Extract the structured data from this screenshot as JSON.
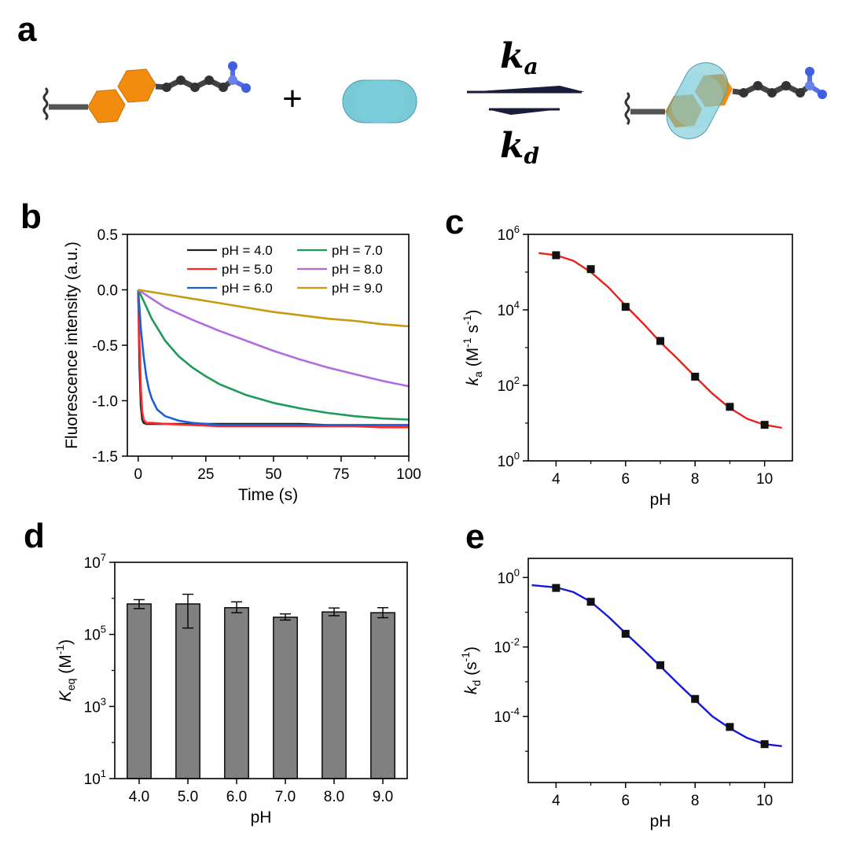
{
  "panels": {
    "a": {
      "label": "a",
      "plus": "+",
      "rate_forward": {
        "symbol": "k",
        "sub": "a"
      },
      "rate_backward": {
        "symbol": "k",
        "sub": "d"
      },
      "colors": {
        "hexagon": "#F28C0F",
        "chain": "#3a3a3a",
        "amine": "#5570e6",
        "capsule": "#63bfcf",
        "arrow": "#1b1b3a"
      }
    },
    "b": {
      "label": "b"
    },
    "c": {
      "label": "c"
    },
    "d": {
      "label": "d"
    },
    "e": {
      "label": "e"
    }
  },
  "chart_data": [
    {
      "panel": "b",
      "type": "line",
      "xlabel": "Time (s)",
      "ylabel": "Fluorescence intensity (a.u.)",
      "xlim": [
        -4,
        100
      ],
      "ylim": [
        -1.5,
        0.5
      ],
      "xticks": [
        0,
        25,
        50,
        75,
        100
      ],
      "xtick_labels": [
        "0",
        "25",
        "50",
        "75",
        "100"
      ],
      "yticks": [
        0.5,
        0.0,
        -0.5,
        -1.0,
        -1.5
      ],
      "ytick_labels": [
        "0.5",
        "0.0",
        "-0.5",
        "-1.0",
        "-1.5"
      ],
      "legend_position": "top-right",
      "series": [
        {
          "name": "pH = 4.0",
          "color": "#222222",
          "x": [
            0,
            0.5,
            1,
            1.5,
            2,
            3,
            5,
            10,
            20,
            30,
            40,
            50,
            60,
            70,
            80,
            90,
            100
          ],
          "y": [
            0.0,
            -0.7,
            -1.05,
            -1.17,
            -1.2,
            -1.21,
            -1.21,
            -1.21,
            -1.21,
            -1.21,
            -1.21,
            -1.21,
            -1.21,
            -1.22,
            -1.22,
            -1.22,
            -1.22
          ]
        },
        {
          "name": "pH = 5.0",
          "color": "#ff2a2a",
          "x": [
            0,
            0.5,
            1,
            1.5,
            2,
            3,
            5,
            10,
            20,
            30,
            40,
            50,
            60,
            70,
            80,
            90,
            100
          ],
          "y": [
            0.0,
            -0.5,
            -0.9,
            -1.1,
            -1.17,
            -1.2,
            -1.2,
            -1.21,
            -1.22,
            -1.23,
            -1.23,
            -1.23,
            -1.23,
            -1.23,
            -1.23,
            -1.24,
            -1.24
          ]
        },
        {
          "name": "pH = 6.0",
          "color": "#1f5fd6",
          "x": [
            0,
            1,
            2,
            3,
            4,
            5,
            7,
            10,
            15,
            20,
            25,
            30,
            40,
            50,
            60,
            70,
            80,
            90,
            100
          ],
          "y": [
            0.0,
            -0.35,
            -0.6,
            -0.78,
            -0.9,
            -0.98,
            -1.08,
            -1.14,
            -1.18,
            -1.2,
            -1.21,
            -1.22,
            -1.22,
            -1.22,
            -1.22,
            -1.22,
            -1.22,
            -1.22,
            -1.22
          ]
        },
        {
          "name": "pH = 7.0",
          "color": "#1e9a5a",
          "x": [
            0,
            2,
            5,
            10,
            15,
            20,
            25,
            30,
            40,
            50,
            60,
            70,
            80,
            90,
            100
          ],
          "y": [
            0.0,
            -0.1,
            -0.26,
            -0.46,
            -0.6,
            -0.7,
            -0.78,
            -0.85,
            -0.95,
            -1.02,
            -1.07,
            -1.11,
            -1.14,
            -1.16,
            -1.17
          ]
        },
        {
          "name": "pH = 8.0",
          "color": "#b06ce0",
          "x": [
            0,
            5,
            10,
            20,
            30,
            40,
            50,
            60,
            70,
            80,
            90,
            100
          ],
          "y": [
            0.0,
            -0.08,
            -0.16,
            -0.27,
            -0.37,
            -0.46,
            -0.55,
            -0.63,
            -0.7,
            -0.76,
            -0.82,
            -0.87
          ]
        },
        {
          "name": "pH = 9.0",
          "color": "#c99a10",
          "x": [
            0,
            10,
            20,
            30,
            40,
            50,
            60,
            70,
            80,
            90,
            100
          ],
          "y": [
            0.0,
            -0.04,
            -0.08,
            -0.12,
            -0.16,
            -0.2,
            -0.23,
            -0.26,
            -0.28,
            -0.31,
            -0.33
          ]
        }
      ]
    },
    {
      "panel": "c",
      "type": "scatter",
      "xlabel": "pH",
      "ylabel": {
        "italic": "k",
        "sub": "a",
        "rest": " (M",
        "sup1": "-1",
        "mid": " s",
        "sup2": "-1",
        "end": ")"
      },
      "xlim": [
        3.2,
        10.8
      ],
      "ylim_log10": [
        0,
        6
      ],
      "y_scale": "log",
      "xticks": [
        4,
        6,
        8,
        10
      ],
      "xtick_labels": [
        "4",
        "6",
        "8",
        "10"
      ],
      "yticks_log10": [
        0,
        2,
        4,
        6
      ],
      "ytick_bases": [
        "10",
        "10",
        "10",
        "10"
      ],
      "ytick_exps": [
        "0",
        "2",
        "4",
        "6"
      ],
      "marker_color": "#111111",
      "fit_color": "#e8231c",
      "x": [
        4,
        5,
        6,
        7,
        8,
        9,
        10
      ],
      "y": [
        280000,
        120000,
        12000,
        1500,
        170,
        27,
        9
      ],
      "fit_x": [
        3.5,
        4,
        4.5,
        5,
        5.5,
        6,
        6.5,
        7,
        7.5,
        8,
        8.5,
        9,
        9.5,
        10,
        10.5
      ],
      "fit_y": [
        320000,
        280000,
        200000,
        100000,
        40000,
        13000,
        4400,
        1400,
        500,
        170,
        60,
        25,
        13,
        9,
        7.5
      ]
    },
    {
      "panel": "d",
      "type": "bar",
      "xlabel": "pH",
      "ylabel": {
        "italic": "K",
        "sub": "eq",
        "rest": " (M",
        "sup1": "-1",
        "end": ")"
      },
      "y_scale": "log",
      "ylim_log10": [
        1,
        7
      ],
      "yticks_log10": [
        1,
        3,
        5,
        7
      ],
      "ytick_bases": [
        "10",
        "10",
        "10",
        "10"
      ],
      "ytick_exps": [
        "1",
        "3",
        "5",
        "7"
      ],
      "bar_color": "#808080",
      "categories": [
        "4.0",
        "5.0",
        "6.0",
        "7.0",
        "8.0",
        "9.0"
      ],
      "values": [
        700000,
        700000,
        550000,
        300000,
        420000,
        400000
      ],
      "error_low": [
        520000,
        150000,
        400000,
        250000,
        330000,
        290000
      ],
      "error_high": [
        920000,
        1300000,
        800000,
        370000,
        540000,
        550000
      ]
    },
    {
      "panel": "e",
      "type": "scatter",
      "xlabel": "pH",
      "ylabel": {
        "italic": "k",
        "sub": "d",
        "rest": " (s",
        "sup1": "-1",
        "end": ")"
      },
      "xlim": [
        3.2,
        10.8
      ],
      "y_scale": "log",
      "ylim_log10": [
        -5.9,
        0.55
      ],
      "xticks": [
        4,
        6,
        8,
        10
      ],
      "xtick_labels": [
        "4",
        "6",
        "8",
        "10"
      ],
      "yticks_log10": [
        0,
        -2,
        -4
      ],
      "ytick_bases": [
        "10",
        "10",
        "10"
      ],
      "ytick_exps": [
        "0",
        "-2",
        "-4"
      ],
      "marker_color": "#111111",
      "fit_color": "#1717d9",
      "x": [
        4,
        5,
        6,
        7,
        8,
        9,
        10
      ],
      "y": [
        0.5,
        0.2,
        0.024,
        0.003,
        0.00032,
        5e-05,
        1.6e-05
      ],
      "fit_x": [
        3.3,
        4,
        4.5,
        5,
        5.5,
        6,
        6.5,
        7,
        7.5,
        8,
        8.5,
        9,
        9.5,
        10,
        10.5
      ],
      "fit_y": [
        0.6,
        0.52,
        0.38,
        0.2,
        0.075,
        0.025,
        0.0085,
        0.0028,
        0.0009,
        0.0003,
        0.0001,
        4.6e-05,
        2.4e-05,
        1.6e-05,
        1.4e-05
      ]
    }
  ]
}
